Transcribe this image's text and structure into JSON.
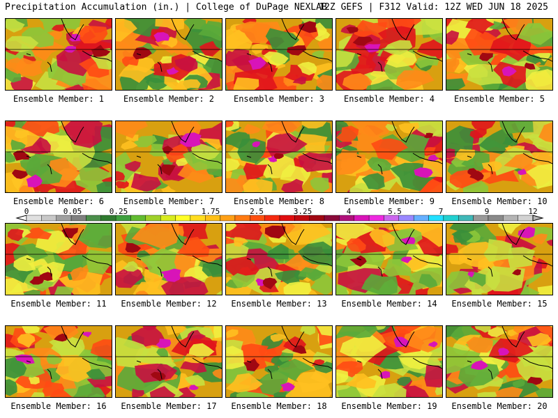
{
  "header": {
    "left": "Precipitation Accumulation (in.) | College of DuPage NEXLAB",
    "right": "12Z GEFS | F312 Valid: 12Z WED JUN 18 2025"
  },
  "member_prefix": "Ensemble Member: ",
  "members": [
    "1",
    "2",
    "3",
    "4",
    "5",
    "6",
    "7",
    "8",
    "9",
    "10",
    "11",
    "12",
    "13",
    "14",
    "15",
    "16",
    "17",
    "18",
    "19",
    "20"
  ],
  "scale": {
    "ticks": [
      "0",
      "0.05",
      "0.25",
      "1",
      "1.75",
      "2.5",
      "3.25",
      "4",
      "5.5",
      "7",
      "9",
      "12"
    ],
    "colors": [
      "#e0e0e0",
      "#c8c8c8",
      "#a0a0a0",
      "#808080",
      "#4b8f4b",
      "#2f7a2f",
      "#3fa03f",
      "#62bc31",
      "#9fd12a",
      "#d8ec1f",
      "#ffff28",
      "#ffdd20",
      "#ffc018",
      "#ffa016",
      "#ff7a12",
      "#ff5010",
      "#f52a10",
      "#e00e10",
      "#c00a10",
      "#a00812",
      "#8a0a3a",
      "#b0107a",
      "#d814b8",
      "#ee2ae0",
      "#cc66ee",
      "#9a88ff",
      "#66b0ff",
      "#22e0ff",
      "#22d0d0",
      "#40b8b8",
      "#9a9a9a",
      "#8a8a8a",
      "#b4b4b4",
      "#d2d2d2"
    ]
  },
  "panel_bg": "#d8a010"
}
